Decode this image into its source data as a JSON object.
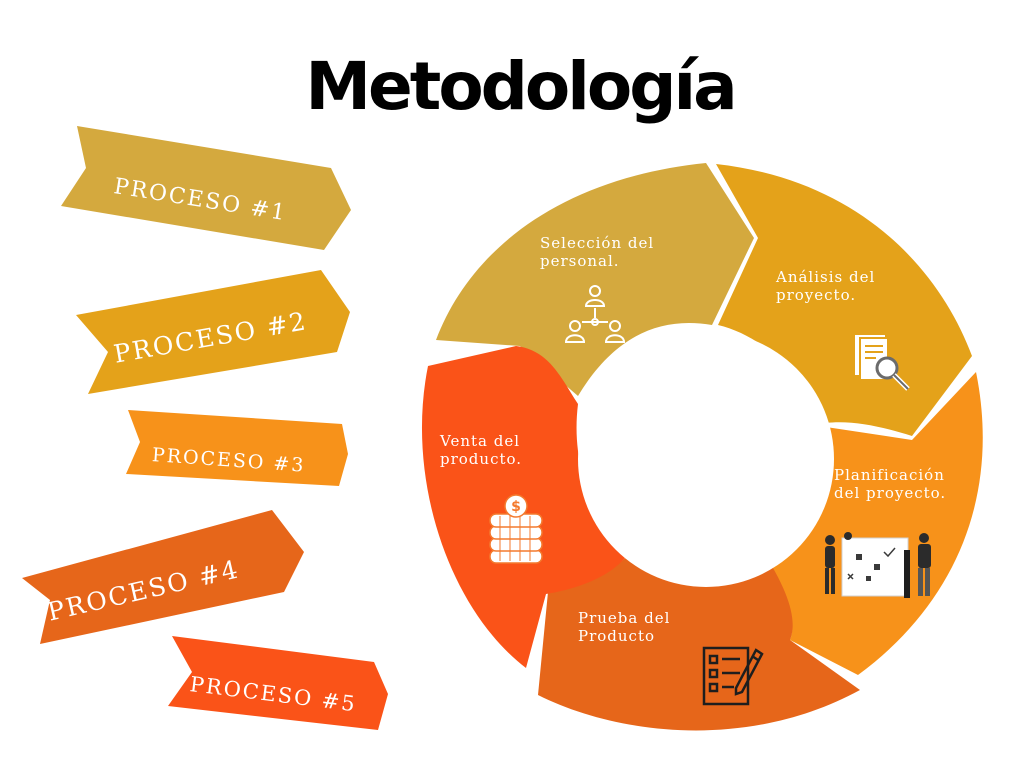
{
  "title": "Metodología",
  "colors": {
    "mustard": "#D4A93E",
    "gold": "#E4A21A",
    "orange": "#F7921A",
    "deep_orange": "#E6661A",
    "red_orange": "#FA5318"
  },
  "processes": [
    {
      "label": "PROCESO #1",
      "color": "#D4A93E"
    },
    {
      "label": "PROCESO #2",
      "color": "#E4A21A"
    },
    {
      "label": "PROCESO #3",
      "color": "#F7921A"
    },
    {
      "label": "PROCESO #4",
      "color": "#E6661A"
    },
    {
      "label": "PROCESO #5",
      "color": "#FA5318"
    }
  ],
  "cycle": [
    {
      "line1": "Selección del",
      "line2": "personal.",
      "icon": "people-network-icon",
      "color": "#D4A93E"
    },
    {
      "line1": "Análisis del",
      "line2": "proyecto.",
      "icon": "document-magnifier-icon",
      "color": "#E4A21A"
    },
    {
      "line1": "Planificación",
      "line2": "del proyecto.",
      "icon": "team-planning-board-icon",
      "color": "#F7921A"
    },
    {
      "line1": "Prueba del",
      "line2": "Producto",
      "icon": "checklist-pencil-icon",
      "color": "#E6661A"
    },
    {
      "line1": "Venta del",
      "line2": "producto.",
      "icon": "coin-stack-icon",
      "color": "#FA5318"
    }
  ]
}
